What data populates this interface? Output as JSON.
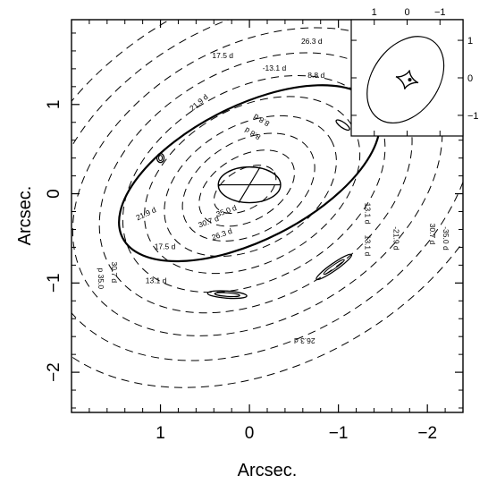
{
  "chart_data": {
    "type": "contour",
    "xlabel": "Arcsec.",
    "ylabel": "Arcsec.",
    "xlim": [
      2.0,
      -2.4
    ],
    "ylim": [
      -2.45,
      1.95
    ],
    "x_reversed": true,
    "xticks": [
      1,
      0,
      -1,
      -2
    ],
    "yticks": [
      1,
      0,
      -1,
      -2
    ],
    "xtick_labels": [
      "1",
      "0",
      "−1",
      "−2"
    ],
    "ytick_labels": [
      "1",
      "0",
      "−1",
      "−2"
    ],
    "contour_style": "dashed",
    "contour_levels_days": [
      4.4,
      8.8,
      13.1,
      17.5,
      21.9,
      26.3,
      30.7,
      35.0
    ],
    "contour_labels": [
      {
        "text": "26.3 d",
        "x": -0.7,
        "y": 1.68,
        "rot": 0
      },
      {
        "text": "17.5 d",
        "x": 0.3,
        "y": 1.52,
        "rot": 0
      },
      {
        "text": "-13.1 d",
        "x": -0.28,
        "y": 1.38,
        "rot": 0
      },
      {
        "text": "8.8 d",
        "x": -0.75,
        "y": 1.3,
        "rot": 0
      },
      {
        "text": "-4.4 d",
        "x": -1.28,
        "y": 1.13,
        "rot": 0
      },
      {
        "text": "21.9 d",
        "x": 0.55,
        "y": 1.0,
        "rot": -40
      },
      {
        "text": "8.8 d",
        "x": -0.15,
        "y": 0.85,
        "rot": 210
      },
      {
        "text": "8.8 d",
        "x": -0.05,
        "y": 0.7,
        "rot": 210
      },
      {
        "text": "13.1 d",
        "x": -1.3,
        "y": -0.22,
        "rot": 90
      },
      {
        "text": "35.0 d",
        "x": 0.25,
        "y": -0.22,
        "rot": -20
      },
      {
        "text": "30.7 d",
        "x": 0.45,
        "y": -0.34,
        "rot": -20
      },
      {
        "text": "26.3 d",
        "x": 0.3,
        "y": -0.48,
        "rot": -20
      },
      {
        "text": "21.9 d",
        "x": 1.15,
        "y": -0.25,
        "rot": -25
      },
      {
        "text": "17.5 d",
        "x": 0.95,
        "y": -0.62,
        "rot": 0
      },
      {
        "text": "13.1 d",
        "x": 1.05,
        "y": -1.0,
        "rot": 0
      },
      {
        "text": "13.1 d",
        "x": -1.3,
        "y": -0.58,
        "rot": 90
      },
      {
        "text": "-21.9 d",
        "x": -1.62,
        "y": -0.5,
        "rot": 90
      },
      {
        "text": "30.7 d",
        "x": -2.03,
        "y": -0.45,
        "rot": 90
      },
      {
        "text": "-35.0 d",
        "x": -2.18,
        "y": -0.5,
        "rot": 90
      },
      {
        "text": "30.7 d",
        "x": 1.55,
        "y": -0.88,
        "rot": 90
      },
      {
        "text": "p 35.0",
        "x": 1.7,
        "y": -0.95,
        "rot": 90
      },
      {
        "text": "26.3 d",
        "x": -0.62,
        "y": -1.62,
        "rot": 180
      }
    ],
    "critical_curve": {
      "type": "ellipse",
      "cx": 0.0,
      "cy": 0.23,
      "a": 1.6,
      "b": 0.75,
      "angle_deg": 27
    },
    "caustic_ellipse": {
      "cx": 0.0,
      "cy": 0.1,
      "a": 0.35,
      "b": 0.2,
      "angle_deg": 0
    },
    "small_features": [
      {
        "cx": 1.0,
        "cy": 0.4,
        "note": "small closed curve"
      },
      {
        "cx": -1.05,
        "cy": 0.77,
        "note": "small elongated curve"
      },
      {
        "cx": -0.95,
        "cy": -0.82,
        "note": "elongated curve"
      },
      {
        "cx": 0.25,
        "cy": -1.13,
        "note": "elongated curve"
      }
    ],
    "inset": {
      "xticks": [
        1,
        0,
        -1
      ],
      "yticks": [
        1,
        0,
        -1
      ],
      "xtick_labels": [
        "1",
        "0",
        "−1"
      ],
      "ytick_labels": [
        "1",
        "0",
        "−1"
      ],
      "content": "elliptical critical curve with astroid caustic"
    }
  }
}
